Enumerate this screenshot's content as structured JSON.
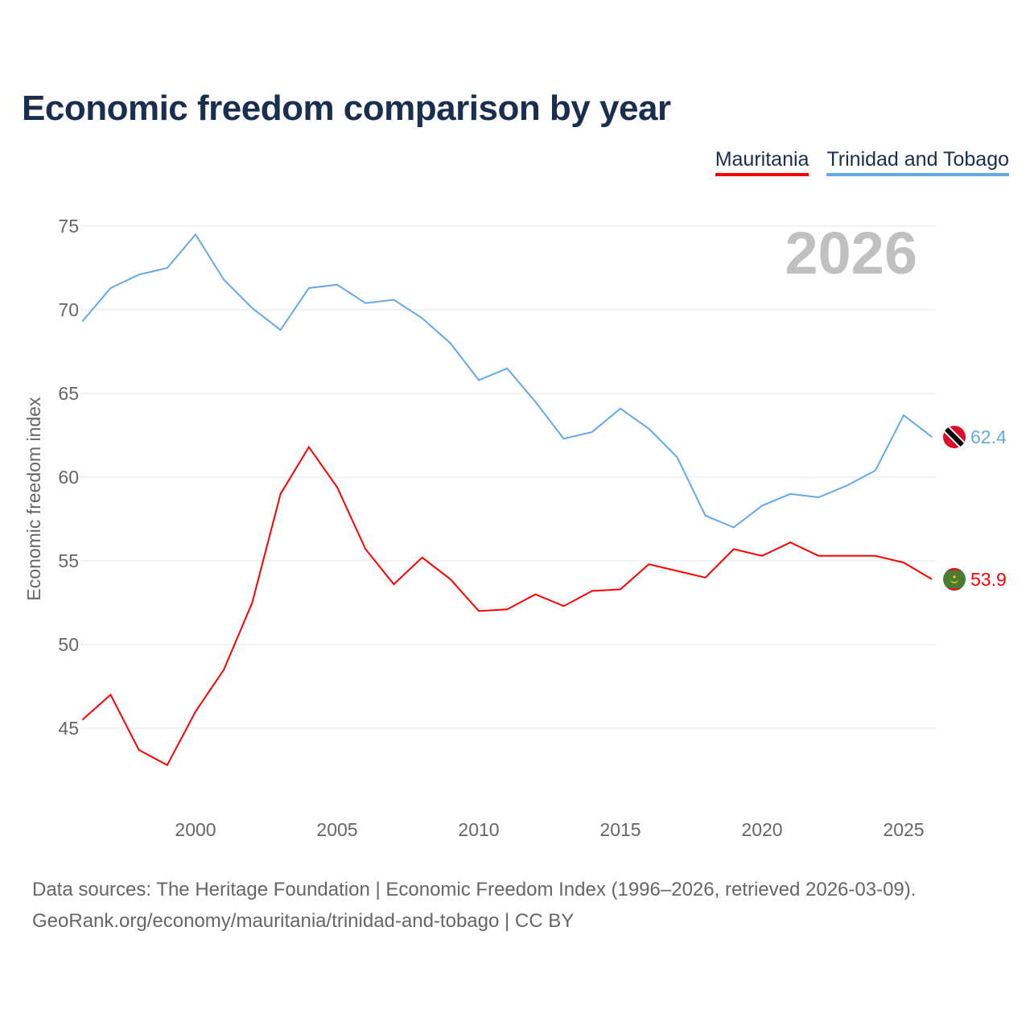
{
  "title": "Economic freedom comparison by year",
  "footer": {
    "line1": "Data sources: The Heritage Foundation | Economic Freedom Index (1996–2026, retrieved 2026-03-09).",
    "line2": "GeoRank.org/economy/mauritania/trinidad-and-tobago | CC BY"
  },
  "chart_data": {
    "type": "line",
    "title": "Economic freedom comparison by year",
    "xlabel": "",
    "ylabel": "Economic freedom index",
    "year_label": "2026",
    "x": [
      1996,
      1997,
      1998,
      1999,
      2000,
      2001,
      2002,
      2003,
      2004,
      2005,
      2006,
      2007,
      2008,
      2009,
      2010,
      2011,
      2012,
      2013,
      2014,
      2015,
      2016,
      2017,
      2018,
      2019,
      2020,
      2021,
      2022,
      2023,
      2024,
      2025,
      2026
    ],
    "xticks": [
      2000,
      2005,
      2010,
      2015,
      2020,
      2025
    ],
    "yticks": [
      45,
      50,
      55,
      60,
      65,
      70,
      75
    ],
    "xlim": [
      1996,
      2026
    ],
    "ylim": [
      40,
      76
    ],
    "legend_position": "top-right",
    "series": [
      {
        "name": "Mauritania",
        "color": "#ff0000",
        "end_label": "53.9",
        "values": [
          45.5,
          47.0,
          43.7,
          42.8,
          46.0,
          48.5,
          52.5,
          59.0,
          61.8,
          59.4,
          55.7,
          53.6,
          55.2,
          53.9,
          52.0,
          52.1,
          53.0,
          52.3,
          53.2,
          53.3,
          54.8,
          54.4,
          54.0,
          55.7,
          55.3,
          56.1,
          55.3,
          55.3,
          55.3,
          54.9,
          53.9
        ]
      },
      {
        "name": "Trinidad and Tobago",
        "color": "#63a9ea",
        "end_label": "62.4",
        "values": [
          69.3,
          71.3,
          72.1,
          72.5,
          74.5,
          71.8,
          70.1,
          68.8,
          71.3,
          71.5,
          70.4,
          70.6,
          69.5,
          68.0,
          65.8,
          66.5,
          64.5,
          62.3,
          62.7,
          64.1,
          62.9,
          61.2,
          57.7,
          57.0,
          58.3,
          59.0,
          58.8,
          59.5,
          60.4,
          63.7,
          62.4
        ]
      }
    ]
  }
}
